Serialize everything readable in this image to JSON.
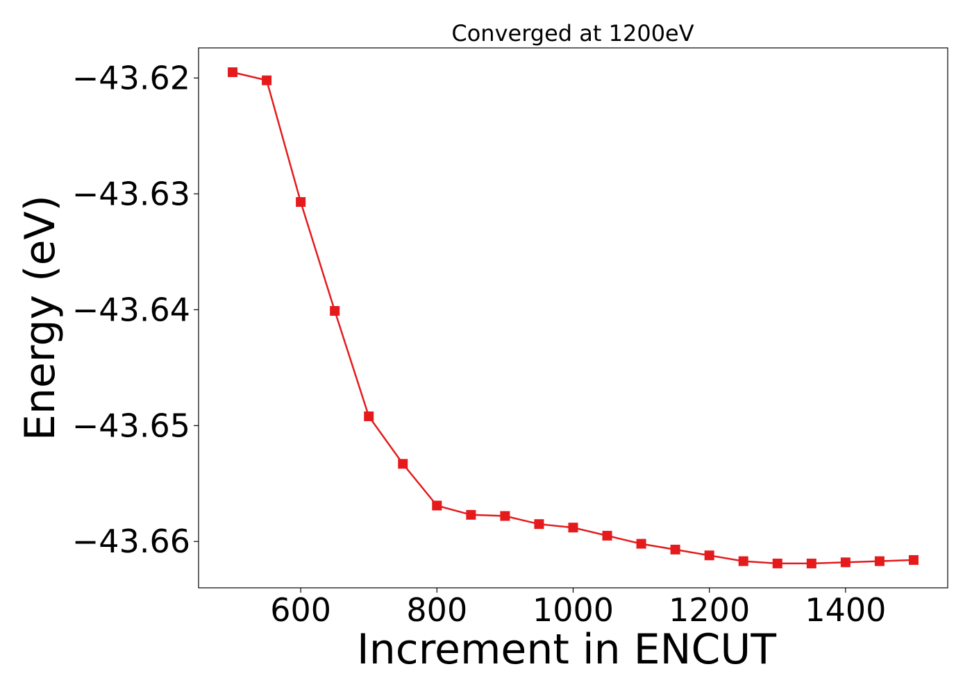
{
  "chart_data": {
    "type": "line",
    "title": "Converged at 1200eV",
    "xlabel": "Increment in ENCUT",
    "ylabel": "Energy (eV)",
    "xlim": [
      450,
      1550
    ],
    "ylim": [
      -43.664,
      -43.6174
    ],
    "xticks": [
      600,
      800,
      1000,
      1200,
      1400
    ],
    "xtick_labels": [
      "600",
      "800",
      "1000",
      "1200",
      "1400"
    ],
    "yticks": [
      -43.62,
      -43.63,
      -43.64,
      -43.65,
      -43.66
    ],
    "ytick_labels": [
      "−43.62",
      "−43.63",
      "−43.64",
      "−43.65",
      "−43.66"
    ],
    "grid": false,
    "series": [
      {
        "color": "#e41a1c",
        "marker": "square",
        "x": [
          500,
          550,
          600,
          650,
          700,
          750,
          800,
          850,
          900,
          950,
          1000,
          1050,
          1100,
          1150,
          1200,
          1250,
          1300,
          1350,
          1400,
          1450,
          1500
        ],
        "y": [
          -43.6195,
          -43.6202,
          -43.6307,
          -43.6401,
          -43.6492,
          -43.6533,
          -43.6569,
          -43.6577,
          -43.6578,
          -43.6585,
          -43.6588,
          -43.6595,
          -43.6602,
          -43.6607,
          -43.6612,
          -43.6617,
          -43.6619,
          -43.6619,
          -43.6618,
          -43.6617,
          -43.6616
        ]
      }
    ]
  }
}
